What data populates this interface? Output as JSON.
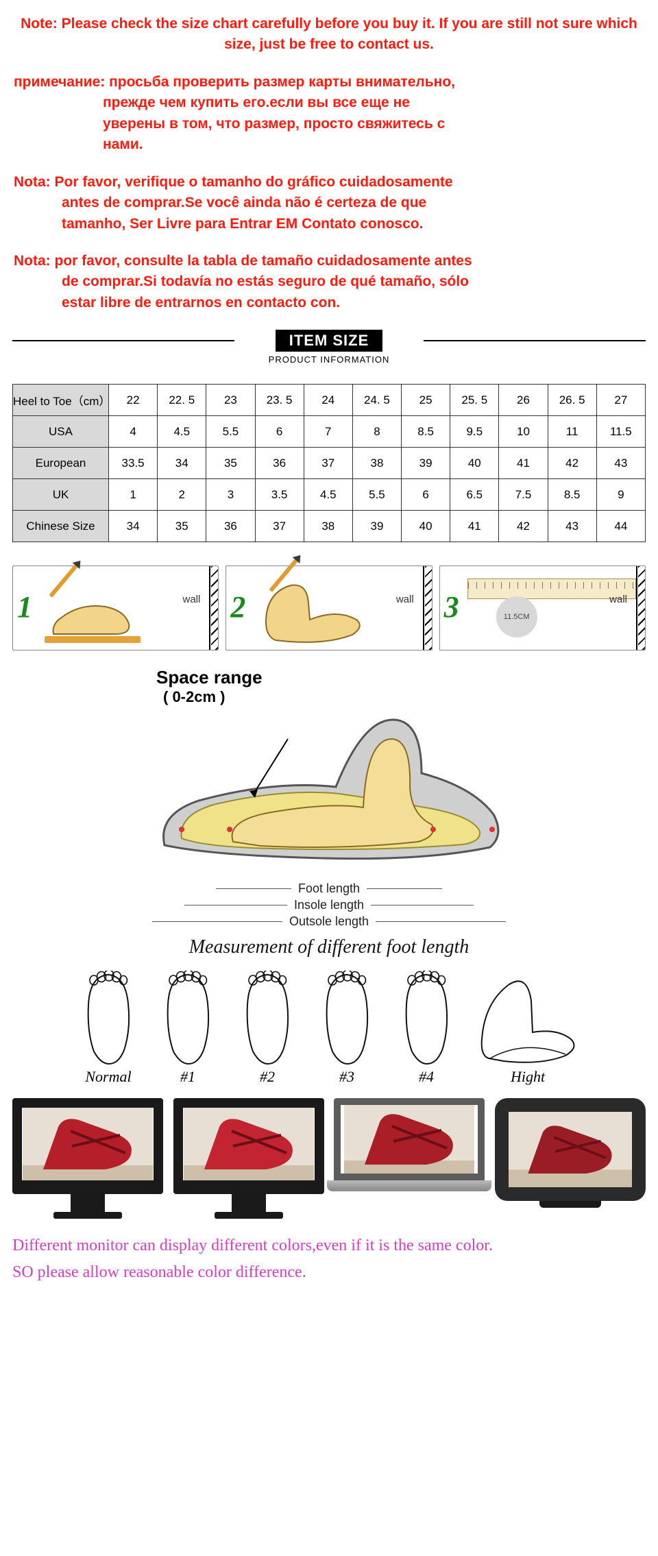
{
  "notes": {
    "n1": "Note: Please check the size chart carefully before you buy it. If you are still not sure which size, just be free to contact us.",
    "n2_lead": "примечание: просьба проверить размер карты внимательно,",
    "n2_l2": "прежде чем купить его.если вы все еще не",
    "n2_l3": "уверены в том, что размер, просто свяжитесь с",
    "n2_l4": "нами.",
    "n3_lead": "Nota: Por favor, verifique o tamanho do gráfico cuidadosamente",
    "n3_l2": "antes de comprar.Se você ainda não é certeza de que",
    "n3_l3": "tamanho, Ser Livre para Entrar EM Contato conosco.",
    "n4_lead": "Nota: por favor, consulte la tabla de tamaño cuidadosamente antes",
    "n4_l2": "de comprar.Si todavía no estás seguro de qué tamaño, sólo",
    "n4_l3": "estar libre de entrarnos en contacto con."
  },
  "divider": {
    "title": "ITEM SIZE",
    "sub": "PRODUCT INFORMATION"
  },
  "table": {
    "rows": [
      {
        "label": "Heel to Toe（cm）",
        "cells": [
          "22",
          "22. 5",
          "23",
          "23. 5",
          "24",
          "24. 5",
          "25",
          "25. 5",
          "26",
          "26. 5",
          "27"
        ]
      },
      {
        "label": "USA",
        "cells": [
          "4",
          "4.5",
          "5.5",
          "6",
          "7",
          "8",
          "8.5",
          "9.5",
          "10",
          "11",
          "11.5"
        ]
      },
      {
        "label": "European",
        "cells": [
          "33.5",
          "34",
          "35",
          "36",
          "37",
          "38",
          "39",
          "40",
          "41",
          "42",
          "43"
        ]
      },
      {
        "label": "UK",
        "cells": [
          "1",
          "2",
          "3",
          "3.5",
          "4.5",
          "5.5",
          "6",
          "6.5",
          "7.5",
          "8.5",
          "9"
        ]
      },
      {
        "label": "Chinese Size",
        "cells": [
          "34",
          "35",
          "36",
          "37",
          "38",
          "39",
          "40",
          "41",
          "42",
          "43",
          "44"
        ]
      }
    ]
  },
  "steps": {
    "wall": "wall",
    "nums": [
      "1",
      "2",
      "3"
    ],
    "circleText": "11.5CM"
  },
  "shoe": {
    "title": "Space range",
    "range": "( 0-2cm )",
    "footLen": "Foot length",
    "insole": "Insole length",
    "outsole": "Outsole length",
    "caption": "Measurement of different foot length"
  },
  "footTypes": [
    "Normal",
    "#1",
    "#2",
    "#3",
    "#4",
    "Hight"
  ],
  "monitorHues": [
    "#b41f2a",
    "#c22432",
    "#aa1e27",
    "#9a1c24"
  ],
  "disclaimer": {
    "l1": "Different monitor can display different colors,even if it is the same color.",
    "l2": "SO please allow reasonable color difference."
  },
  "colors": {
    "noteRed": "#fe1b0d",
    "pink": "#d63cc6",
    "headerBg": "#d9d9d9"
  }
}
